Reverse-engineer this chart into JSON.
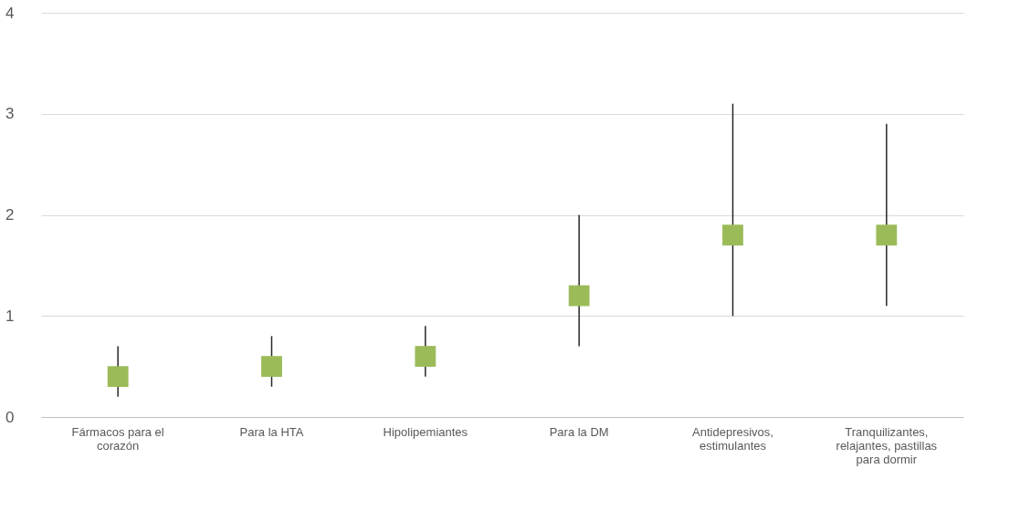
{
  "chart_data": {
    "type": "scatter",
    "categories": [
      "Fármacos para el corazón",
      "Para la HTA",
      "Hipolipemiantes",
      "Para la DM",
      "Antidepresivos, estimulantes",
      "Tranquilizantes, relajantes, pastillas para dormir"
    ],
    "values": [
      0.4,
      0.5,
      0.6,
      1.2,
      1.8,
      1.8
    ],
    "errors": [
      [
        0.2,
        0.7
      ],
      [
        0.3,
        0.8
      ],
      [
        0.4,
        0.9
      ],
      [
        0.7,
        2.0
      ],
      [
        1.0,
        3.1
      ],
      [
        1.1,
        2.9
      ]
    ],
    "color": "#9bbb59",
    "marker": "square",
    "ylim": [
      0,
      4
    ],
    "yticks": [
      0,
      1,
      2,
      3,
      4
    ],
    "grid": "y"
  }
}
